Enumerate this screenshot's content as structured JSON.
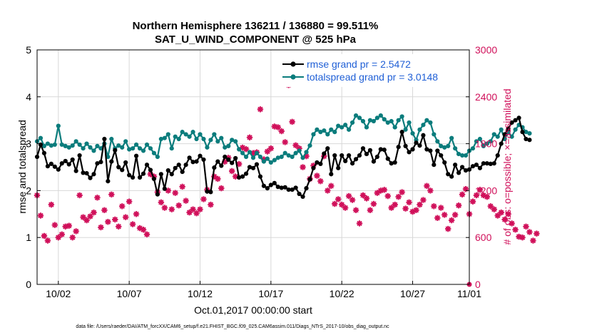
{
  "figure": {
    "title_line1": "Northern Hemisphere 136211 / 136880 = 99.511%",
    "title_line2": "SAT_U_WIND_COMPONENT @ 525 hPa",
    "footer": "data file: /Users/raeder/DAI/ATM_forcXX/CAM6_setup/f.e21.FHIST_BGC.f09_025.CAM6assim.011/Diags_NTrS_2017-10/obs_diag_output.nc"
  },
  "chart_data": {
    "type": "line",
    "xlabel": "Oct.01,2017 00:00:00 start",
    "ylabel_left": "rmse and totalspread",
    "ylabel_right": "# of obs: o=possible; ×=assimilated",
    "x_range": [
      0.5,
      31.0
    ],
    "x_ticks": [
      {
        "x": 2,
        "label": "10/02"
      },
      {
        "x": 7,
        "label": "10/07"
      },
      {
        "x": 12,
        "label": "10/12"
      },
      {
        "x": 17,
        "label": "10/17"
      },
      {
        "x": 22,
        "label": "10/22"
      },
      {
        "x": 27,
        "label": "10/27"
      },
      {
        "x": 32,
        "label": "11/01"
      }
    ],
    "ylim_left": [
      0,
      5
    ],
    "y_ticks_left": [
      "0",
      "1",
      "2",
      "3",
      "4",
      "5"
    ],
    "ylim_right": [
      0,
      3000
    ],
    "y_ticks_right": [
      "0",
      "600",
      "1200",
      "1800",
      "2400",
      "3000"
    ],
    "grid": true,
    "legend_position": "top-right",
    "colors": {
      "rmse": "#000000",
      "totalspread": "#0a7c7c",
      "obs": "#d0105a",
      "legend_text": "#1f5fd6"
    },
    "x_start": 0.5,
    "x_step": 0.25,
    "series": [
      {
        "name": "rmse grand pr = 2.5472",
        "axis": "left",
        "values": [
          2.72,
          2.98,
          2.8,
          2.52,
          2.57,
          2.51,
          2.45,
          2.58,
          2.63,
          2.56,
          2.66,
          2.42,
          2.75,
          2.38,
          2.37,
          2.27,
          2.35,
          2.58,
          2.61,
          3.1,
          2.2,
          2.62,
          2.86,
          2.5,
          2.44,
          2.6,
          2.33,
          2.28,
          2.74,
          2.28,
          2.36,
          2.55,
          2.44,
          2.25,
          1.92,
          2.35,
          2.04,
          2.43,
          2.35,
          2.48,
          2.55,
          2.4,
          2.55,
          2.7,
          2.61,
          2.62,
          2.74,
          2.66,
          1.98,
          1.97,
          2.49,
          2.62,
          2.53,
          2.72,
          2.66,
          2.59,
          2.69,
          2.28,
          2.3,
          2.36,
          2.5,
          2.48,
          2.56,
          2.3,
          2.1,
          2.05,
          2.12,
          2.16,
          2.08,
          2.06,
          2.07,
          2.02,
          2.02,
          2.06,
          1.93,
          1.87,
          2.05,
          2.24,
          2.48,
          2.6,
          2.57,
          2.79,
          2.9,
          2.35,
          2.75,
          2.48,
          2.75,
          2.63,
          2.75,
          2.58,
          2.67,
          2.75,
          2.9,
          2.78,
          2.86,
          2.62,
          2.72,
          2.88,
          2.87,
          2.68,
          2.58,
          2.6,
          2.93,
          3.25,
          2.95,
          2.82,
          2.88,
          3.02,
          2.96,
          3.18,
          2.88,
          2.85,
          2.55,
          2.85,
          2.75,
          2.6,
          2.35,
          2.3,
          2.55,
          2.38,
          2.5,
          2.43,
          2.45,
          2.52,
          2.55,
          2.48,
          2.58,
          2.58,
          2.57,
          2.58,
          2.75,
          3.0,
          3.2,
          3.32,
          3.45,
          3.5,
          3.55,
          3.25,
          3.1,
          3.08
        ]
      },
      {
        "name": "totalspread grand pr = 3.0148",
        "axis": "left",
        "values": [
          3.05,
          3.12,
          2.95,
          3.0,
          2.96,
          2.98,
          3.38,
          2.98,
          2.95,
          2.92,
          2.96,
          3.05,
          2.98,
          2.9,
          3.0,
          2.92,
          2.85,
          2.95,
          2.9,
          3.0,
          2.72,
          3.1,
          2.9,
          2.96,
          2.92,
          3.05,
          2.88,
          2.9,
          2.98,
          2.9,
          2.85,
          2.98,
          2.9,
          2.8,
          2.72,
          3.1,
          3.12,
          3.2,
          2.9,
          3.15,
          3.1,
          3.25,
          3.2,
          3.15,
          3.25,
          3.1,
          3.2,
          3.1,
          2.92,
          3.08,
          3.2,
          3.05,
          3.12,
          2.92,
          2.95,
          3.08,
          3.05,
          2.88,
          2.8,
          2.72,
          2.82,
          2.7,
          2.8,
          2.72,
          2.62,
          2.68,
          2.6,
          2.65,
          2.7,
          2.72,
          2.8,
          2.75,
          2.72,
          2.8,
          2.85,
          2.7,
          2.82,
          2.96,
          3.2,
          3.3,
          3.25,
          3.28,
          3.2,
          3.3,
          3.25,
          3.38,
          3.35,
          3.4,
          3.3,
          3.45,
          3.6,
          3.55,
          3.48,
          3.35,
          3.5,
          3.48,
          3.55,
          3.6,
          3.52,
          3.45,
          3.48,
          3.35,
          3.5,
          3.58,
          3.3,
          3.45,
          3.22,
          3.08,
          3.3,
          3.4,
          3.5,
          3.45,
          3.2,
          3.05,
          2.95,
          2.92,
          2.95,
          3.12,
          2.9,
          2.78,
          2.75,
          2.75,
          2.85,
          2.9,
          3.05,
          3.1,
          2.95,
          3.0,
          3.05,
          3.2,
          3.15,
          3.3,
          3.1,
          3.25,
          3.15,
          3.3,
          3.4,
          3.35,
          3.25,
          3.22
        ]
      },
      {
        "name": "# of obs assimilated",
        "axis": "right",
        "values": [
          1140,
          880,
          620,
          560,
          1020,
          760,
          600,
          640,
          740,
          750,
          600,
          680,
          1140,
          860,
          820,
          870,
          920,
          1110,
          730,
          950,
          800,
          1150,
          830,
          740,
          1000,
          860,
          1060,
          770,
          900,
          720,
          700,
          640,
          1410,
          1380,
          1180,
          1050,
          980,
          1200,
          960,
          1170,
          1010,
          1250,
          1070,
          920,
          960,
          910,
          960,
          1090,
          1210,
          1020,
          1380,
          1350,
          1230,
          1570,
          1620,
          1450,
          1380,
          1540,
          1750,
          1730,
          1880,
          1680,
          1690,
          2240,
          1600,
          1700,
          1740,
          2020,
          2010,
          1960,
          1820,
          2550,
          2080,
          1780,
          1740,
          1500,
          1640,
          1350,
          1520,
          1390,
          1320,
          1640,
          1200,
          1260,
          1030,
          1090,
          1020,
          980,
          1130,
          1080,
          950,
          780,
          1140,
          1100,
          950,
          1030,
          1170,
          1200,
          1210,
          1130,
          980,
          1020,
          1120,
          1180,
          970,
          1050,
          930,
          950,
          1020,
          1080,
          1260,
          1200,
          1000,
          850,
          980,
          890,
          710,
          820,
          890,
          1010,
          1150,
          1220,
          900,
          1060,
          1140,
          1210,
          1140,
          1120,
          1000,
          960,
          880,
          920,
          830,
          900,
          780,
          700,
          610,
          600,
          740,
          670,
          560,
          650
        ]
      }
    ]
  }
}
